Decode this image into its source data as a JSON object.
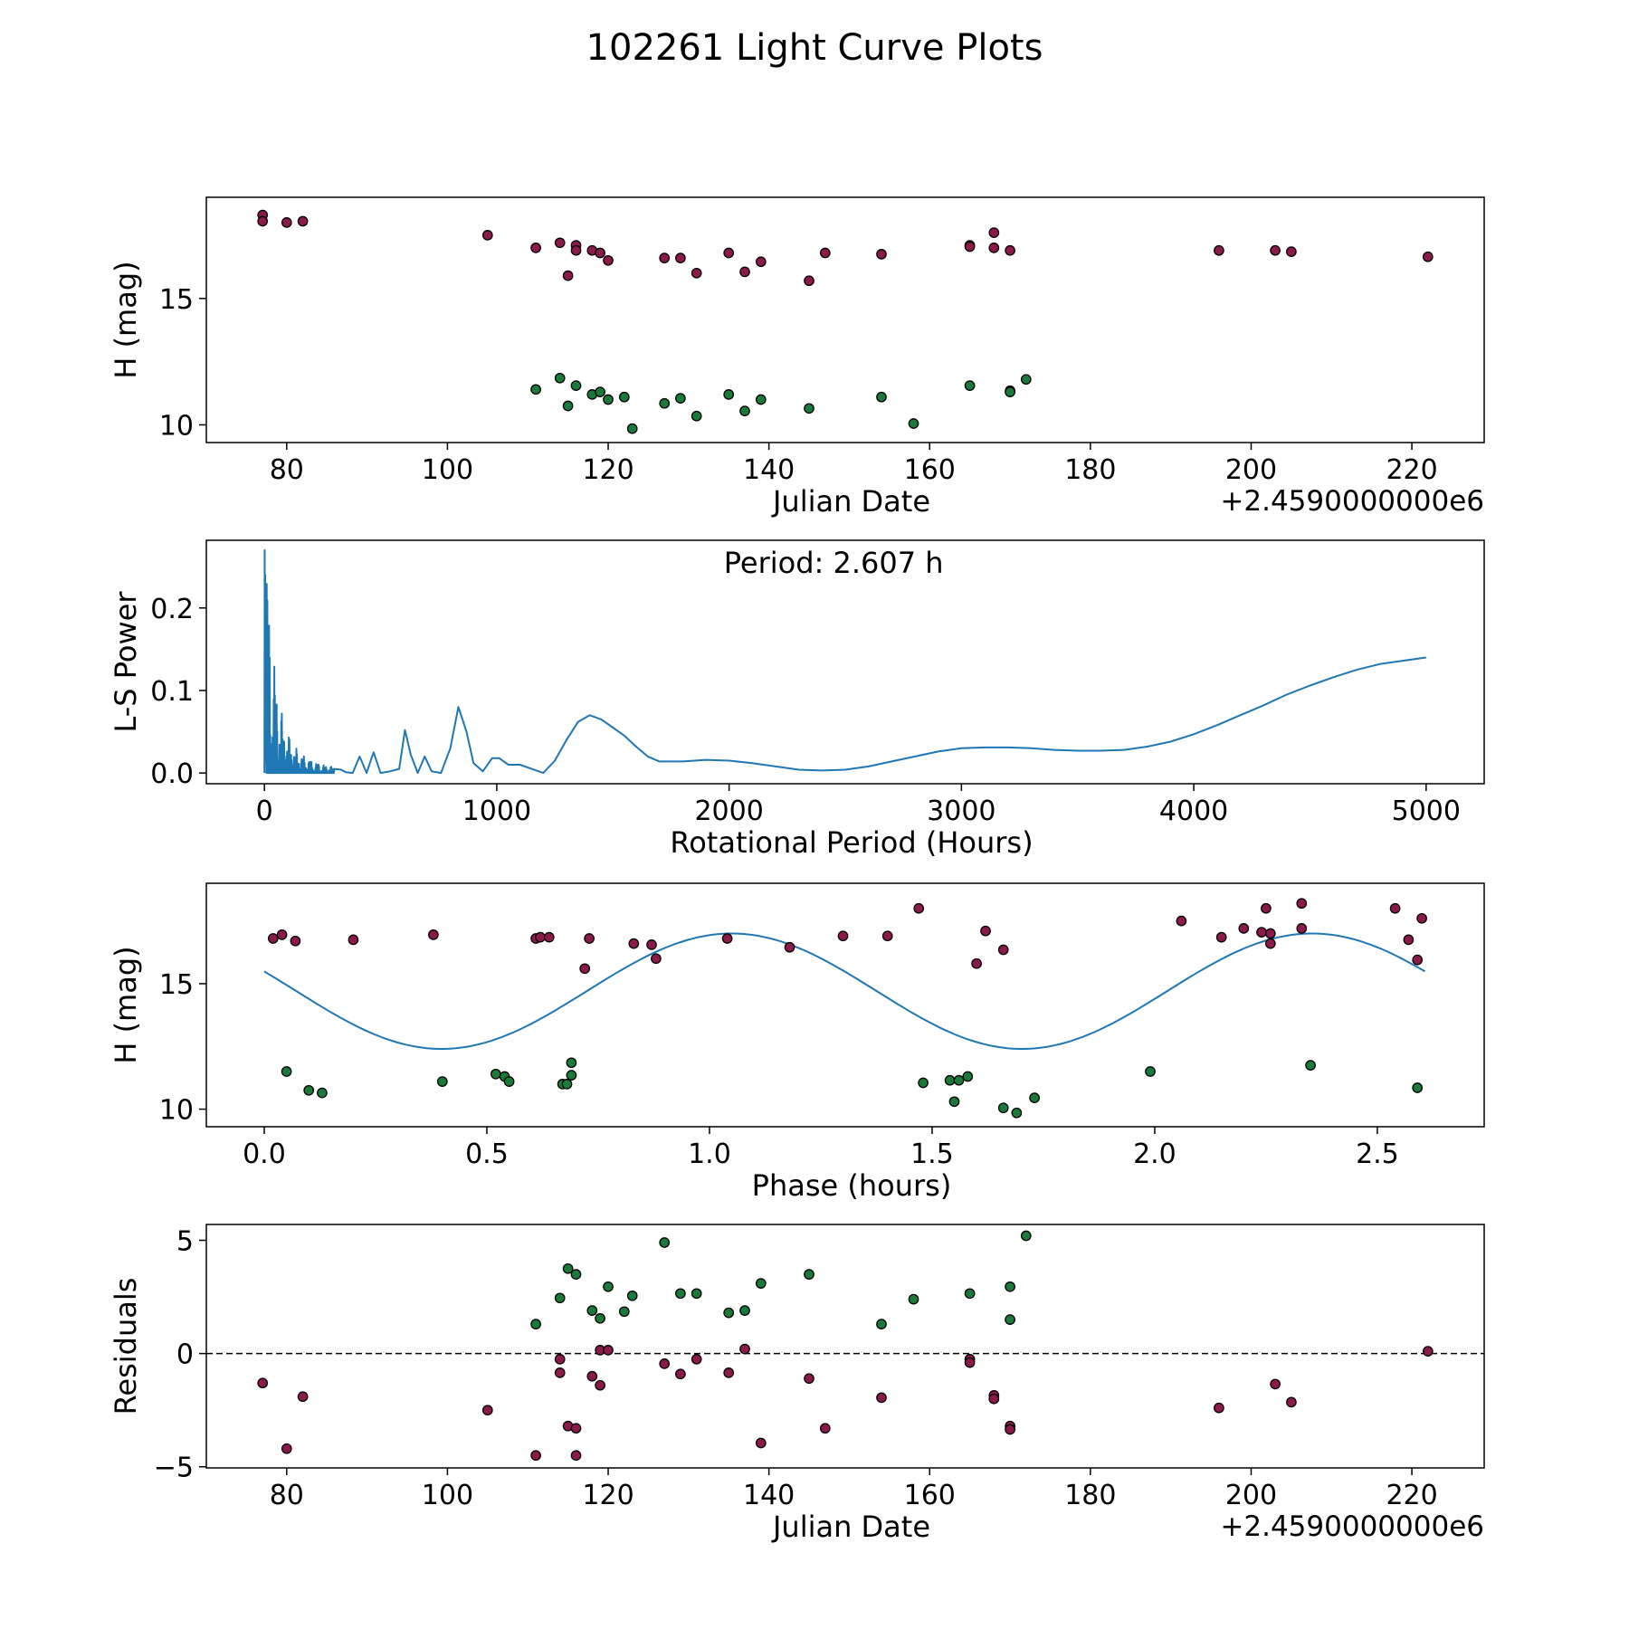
{
  "figure_title": "102261 Light Curve Plots",
  "colors": {
    "red_points": "#8b1a4a",
    "green_points": "#1a7a3a",
    "curve": "#1f77b4",
    "edge": "#000000"
  },
  "chart_data": [
    {
      "type": "scatter",
      "panel": "lightcurve",
      "xlabel": "Julian Date",
      "ylabel": "H (mag)",
      "offset_text": "+2.4590000000e6",
      "xlim": [
        70,
        229
      ],
      "ylim": [
        9.3,
        19.0
      ],
      "xticks": [
        80,
        100,
        120,
        140,
        160,
        180,
        200,
        220
      ],
      "yticks": [
        10,
        15
      ],
      "series": [
        {
          "name": "red",
          "color": "#8b1a4a",
          "points": [
            [
              77,
              18.3
            ],
            [
              77,
              18.05
            ],
            [
              80,
              18.0
            ],
            [
              82,
              18.05
            ],
            [
              105,
              17.5
            ],
            [
              111,
              17.0
            ],
            [
              114,
              17.2
            ],
            [
              116,
              17.1
            ],
            [
              116,
              16.9
            ],
            [
              118,
              16.9
            ],
            [
              119,
              16.8
            ],
            [
              120,
              16.5
            ],
            [
              115,
              15.9
            ],
            [
              127,
              16.6
            ],
            [
              129,
              16.6
            ],
            [
              131,
              16.0
            ],
            [
              135,
              16.8
            ],
            [
              137,
              16.05
            ],
            [
              139,
              16.45
            ],
            [
              145,
              15.7
            ],
            [
              147,
              16.8
            ],
            [
              154,
              16.75
            ],
            [
              165,
              17.1
            ],
            [
              165,
              17.05
            ],
            [
              168,
              17.6
            ],
            [
              168,
              17.0
            ],
            [
              170,
              16.9
            ],
            [
              196,
              16.9
            ],
            [
              203,
              16.9
            ],
            [
              205,
              16.85
            ],
            [
              222,
              16.65
            ]
          ]
        },
        {
          "name": "green",
          "color": "#1a7a3a",
          "points": [
            [
              111,
              11.4
            ],
            [
              114,
              11.85
            ],
            [
              115,
              10.75
            ],
            [
              116,
              11.55
            ],
            [
              118,
              11.2
            ],
            [
              119,
              11.3
            ],
            [
              120,
              11.0
            ],
            [
              122,
              11.1
            ],
            [
              123,
              9.85
            ],
            [
              127,
              10.85
            ],
            [
              129,
              11.05
            ],
            [
              131,
              10.35
            ],
            [
              135,
              11.2
            ],
            [
              137,
              10.55
            ],
            [
              139,
              11.0
            ],
            [
              145,
              10.65
            ],
            [
              154,
              11.1
            ],
            [
              158,
              10.05
            ],
            [
              165,
              11.55
            ],
            [
              170,
              11.35
            ],
            [
              170,
              11.3
            ],
            [
              172,
              11.8
            ]
          ]
        }
      ]
    },
    {
      "type": "line",
      "panel": "periodogram",
      "title": "Period: 2.607 h",
      "xlabel": "Rotational Period (Hours)",
      "ylabel": "L-S Power",
      "xlim": [
        -250,
        5250
      ],
      "ylim": [
        -0.013,
        0.282
      ],
      "xticks": [
        0,
        1000,
        2000,
        3000,
        4000,
        5000
      ],
      "yticks": [
        "0.0",
        "0.1",
        "0.2"
      ],
      "ytick_values": [
        0.0,
        0.1,
        0.2
      ],
      "series": [
        {
          "name": "L-S power",
          "x": [
            0,
            300,
            330,
            350,
            380,
            410,
            440,
            470,
            500,
            540,
            580,
            605,
            630,
            660,
            690,
            720,
            760,
            800,
            835,
            870,
            900,
            940,
            980,
            1010,
            1050,
            1100,
            1150,
            1200,
            1250,
            1300,
            1350,
            1400,
            1450,
            1500,
            1550,
            1600,
            1650,
            1700,
            1750,
            1800,
            1900,
            2000,
            2100,
            2200,
            2300,
            2400,
            2500,
            2600,
            2700,
            2800,
            2900,
            3000,
            3100,
            3200,
            3300,
            3400,
            3500,
            3600,
            3700,
            3800,
            3900,
            4000,
            4100,
            4200,
            4300,
            4400,
            4500,
            4600,
            4700,
            4800,
            4900,
            5000
          ],
          "y": [
            0.0,
            0.005,
            0.004,
            0.001,
            0.0,
            0.02,
            0.0,
            0.025,
            0.0,
            0.002,
            0.005,
            0.052,
            0.022,
            0.0,
            0.02,
            0.002,
            0.0,
            0.03,
            0.08,
            0.05,
            0.012,
            0.002,
            0.018,
            0.018,
            0.01,
            0.01,
            0.005,
            0.0,
            0.015,
            0.04,
            0.062,
            0.07,
            0.065,
            0.055,
            0.045,
            0.032,
            0.02,
            0.014,
            0.014,
            0.014,
            0.016,
            0.015,
            0.012,
            0.008,
            0.004,
            0.003,
            0.004,
            0.008,
            0.014,
            0.02,
            0.026,
            0.03,
            0.031,
            0.031,
            0.03,
            0.028,
            0.027,
            0.027,
            0.028,
            0.032,
            0.038,
            0.047,
            0.058,
            0.07,
            0.082,
            0.095,
            0.106,
            0.116,
            0.125,
            0.132,
            0.136,
            0.14
          ]
        }
      ]
    },
    {
      "type": "scatter",
      "panel": "phased",
      "xlabel": "Phase (hours)",
      "ylabel": "H (mag)",
      "xlim": [
        -0.13,
        2.74
      ],
      "ylim": [
        9.3,
        19.0
      ],
      "xticks": [
        "0.0",
        "0.5",
        "1.0",
        "1.5",
        "2.0",
        "2.5"
      ],
      "xtick_values": [
        0.0,
        0.5,
        1.0,
        1.5,
        2.0,
        2.5
      ],
      "yticks": [
        10,
        15
      ],
      "model_curve": {
        "period_hours": 2.607,
        "mean": 14.7,
        "amplitude": 2.3,
        "phase_of_max_hours": 1.05
      },
      "series": [
        {
          "name": "red",
          "color": "#8b1a4a",
          "points": [
            [
              0.02,
              16.8
            ],
            [
              0.04,
              16.95
            ],
            [
              0.07,
              16.7
            ],
            [
              0.2,
              16.75
            ],
            [
              0.38,
              16.95
            ],
            [
              0.61,
              16.8
            ],
            [
              0.62,
              16.85
            ],
            [
              0.64,
              16.85
            ],
            [
              0.72,
              15.6
            ],
            [
              0.73,
              16.8
            ],
            [
              0.83,
              16.6
            ],
            [
              0.87,
              16.55
            ],
            [
              0.88,
              16.0
            ],
            [
              1.04,
              16.8
            ],
            [
              1.18,
              16.45
            ],
            [
              1.3,
              16.9
            ],
            [
              1.4,
              16.9
            ],
            [
              1.47,
              18.0
            ],
            [
              1.6,
              15.8
            ],
            [
              1.62,
              17.1
            ],
            [
              1.66,
              16.35
            ],
            [
              2.06,
              17.5
            ],
            [
              2.15,
              16.85
            ],
            [
              2.2,
              17.2
            ],
            [
              2.24,
              17.05
            ],
            [
              2.25,
              18.0
            ],
            [
              2.26,
              17.0
            ],
            [
              2.26,
              16.6
            ],
            [
              2.33,
              17.2
            ],
            [
              2.33,
              18.2
            ],
            [
              2.54,
              18.0
            ],
            [
              2.57,
              16.75
            ],
            [
              2.59,
              15.95
            ],
            [
              2.6,
              17.6
            ]
          ]
        },
        {
          "name": "green",
          "color": "#1a7a3a",
          "points": [
            [
              0.05,
              11.5
            ],
            [
              0.1,
              10.75
            ],
            [
              0.13,
              10.65
            ],
            [
              0.4,
              11.1
            ],
            [
              0.52,
              11.4
            ],
            [
              0.54,
              11.3
            ],
            [
              0.55,
              11.1
            ],
            [
              0.67,
              11.0
            ],
            [
              0.68,
              11.0
            ],
            [
              0.69,
              11.85
            ],
            [
              0.69,
              11.35
            ],
            [
              1.48,
              11.05
            ],
            [
              1.54,
              11.15
            ],
            [
              1.55,
              10.3
            ],
            [
              1.56,
              11.15
            ],
            [
              1.58,
              11.3
            ],
            [
              1.66,
              10.05
            ],
            [
              1.69,
              9.85
            ],
            [
              1.73,
              10.45
            ],
            [
              1.99,
              11.5
            ],
            [
              2.35,
              11.75
            ],
            [
              2.59,
              10.85
            ]
          ]
        }
      ]
    },
    {
      "type": "scatter",
      "panel": "residuals",
      "xlabel": "Julian Date",
      "ylabel": "Residuals",
      "offset_text": "+2.4590000000e6",
      "xlim": [
        70,
        229
      ],
      "ylim": [
        -5.05,
        5.7
      ],
      "xticks": [
        80,
        100,
        120,
        140,
        160,
        180,
        200,
        220
      ],
      "yticks": [
        "−5",
        "0",
        "5"
      ],
      "ytick_values": [
        -5,
        0,
        5
      ],
      "reference_line": 0,
      "series": [
        {
          "name": "red",
          "color": "#8b1a4a",
          "points": [
            [
              77,
              -1.3
            ],
            [
              80,
              -4.2
            ],
            [
              82,
              -1.9
            ],
            [
              105,
              -2.5
            ],
            [
              111,
              -4.5
            ],
            [
              114,
              -0.25
            ],
            [
              114,
              -0.85
            ],
            [
              115,
              -3.2
            ],
            [
              116,
              -3.3
            ],
            [
              116,
              -4.5
            ],
            [
              118,
              -1.0
            ],
            [
              119,
              -1.4
            ],
            [
              119,
              0.15
            ],
            [
              120,
              0.15
            ],
            [
              127,
              -0.45
            ],
            [
              129,
              -0.9
            ],
            [
              131,
              -0.25
            ],
            [
              135,
              -0.85
            ],
            [
              137,
              0.2
            ],
            [
              139,
              -3.95
            ],
            [
              145,
              -1.1
            ],
            [
              147,
              -3.3
            ],
            [
              154,
              -1.95
            ],
            [
              165,
              -0.25
            ],
            [
              165,
              -0.4
            ],
            [
              168,
              -1.85
            ],
            [
              168,
              -2.0
            ],
            [
              170,
              -3.2
            ],
            [
              170,
              -3.35
            ],
            [
              196,
              -2.4
            ],
            [
              203,
              -1.35
            ],
            [
              205,
              -2.15
            ],
            [
              222,
              0.1
            ]
          ]
        },
        {
          "name": "green",
          "color": "#1a7a3a",
          "points": [
            [
              111,
              1.3
            ],
            [
              114,
              2.45
            ],
            [
              115,
              3.75
            ],
            [
              116,
              3.5
            ],
            [
              118,
              1.9
            ],
            [
              119,
              1.55
            ],
            [
              120,
              2.95
            ],
            [
              122,
              1.85
            ],
            [
              123,
              2.55
            ],
            [
              127,
              4.9
            ],
            [
              129,
              2.65
            ],
            [
              131,
              2.65
            ],
            [
              135,
              1.8
            ],
            [
              137,
              1.9
            ],
            [
              139,
              3.1
            ],
            [
              145,
              3.5
            ],
            [
              154,
              1.3
            ],
            [
              158,
              2.4
            ],
            [
              165,
              2.65
            ],
            [
              170,
              2.95
            ],
            [
              170,
              1.5
            ],
            [
              172,
              5.2
            ]
          ]
        }
      ]
    }
  ]
}
